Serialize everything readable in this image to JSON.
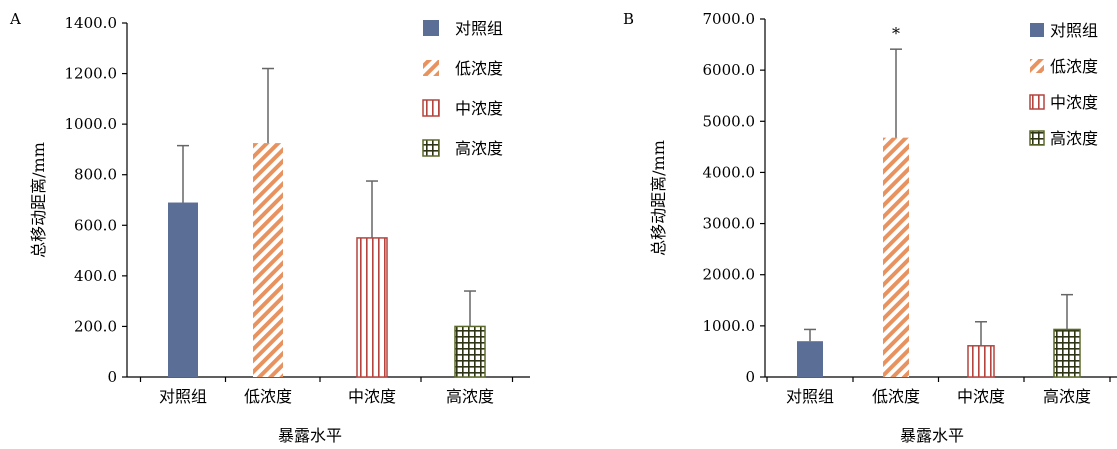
{
  "chart_data": [
    {
      "type": "bar",
      "panel_label": "A",
      "categories": [
        "对照组",
        "低浓度",
        "中浓度",
        "高浓度"
      ],
      "values": [
        690,
        925,
        550,
        200
      ],
      "errors": [
        225,
        295,
        225,
        140
      ],
      "ylim": [
        0,
        1400
      ],
      "yticks": [
        0,
        200,
        400,
        600,
        800,
        1000,
        1200,
        1400
      ],
      "ytick_labels": [
        "0",
        "200.0",
        "400.0",
        "600.0",
        "800.0",
        "1000.0",
        "1200.0",
        "1400.0"
      ],
      "xlabel": "暴露水平",
      "ylabel": "总移动距离/mm",
      "legend": [
        "对照组",
        "低浓度",
        "中浓度",
        "高浓度"
      ],
      "legend_position": "top-right",
      "annotations": [],
      "grid": false
    },
    {
      "type": "bar",
      "panel_label": "B",
      "categories": [
        "对照组",
        "低浓度",
        "中浓度",
        "高浓度"
      ],
      "values": [
        700,
        4680,
        610,
        930
      ],
      "errors": [
        230,
        1730,
        470,
        680
      ],
      "ylim": [
        0,
        7000
      ],
      "yticks": [
        0,
        1000,
        2000,
        3000,
        4000,
        5000,
        6000,
        7000
      ],
      "ytick_labels": [
        "0",
        "1000.0",
        "2000.0",
        "3000.0",
        "4000.0",
        "5000.0",
        "6000.0",
        "7000.0"
      ],
      "xlabel": "暴露水平",
      "ylabel": "总移动距离/mm",
      "legend": [
        "对照组",
        "低浓度",
        "中浓度",
        "高浓度"
      ],
      "legend_position": "top-right",
      "annotations": [
        {
          "category_index": 1,
          "text": "*"
        }
      ],
      "grid": false
    }
  ],
  "colors": {
    "control": "#5b6e95",
    "low": "#e8925f",
    "mid": "#b5443f",
    "high": "#5b6a2a",
    "axis": "#000000",
    "error_bar": "#666666"
  }
}
